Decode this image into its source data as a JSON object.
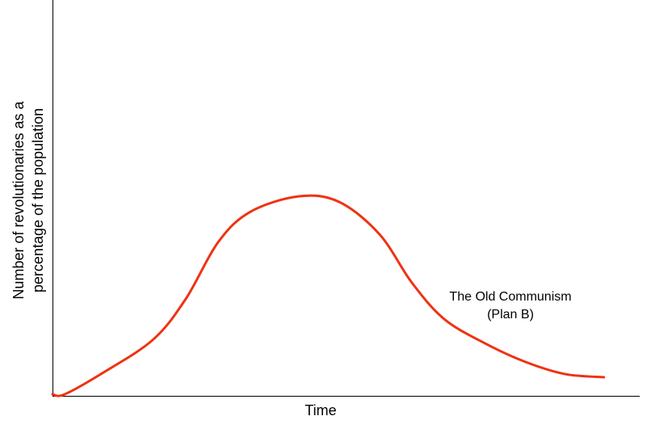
{
  "chart_data": {
    "type": "line",
    "x_label": "Time",
    "y_label": [
      "Number of revolutionaries as a",
      "percentage of the population"
    ],
    "annotations": [
      "The Old Communism",
      "(Plan B)"
    ],
    "annotation_color": "#ee3311",
    "xlim": [
      0,
      100
    ],
    "ylim": [
      0,
      100
    ],
    "x": [
      0,
      2.1,
      8.9,
      17.2,
      22.7,
      28.2,
      33.7,
      42.0,
      48.8,
      55.7,
      61.2,
      66.7,
      73.6,
      80.5,
      87.3,
      93.9
    ],
    "series": [
      {
        "color": "#ee3311",
        "values": [
          0.4,
          0.4,
          6.1,
          14.3,
          24.5,
          38.8,
          46.5,
          50.4,
          49.0,
          40.8,
          28.6,
          19.4,
          13.3,
          8.6,
          5.5,
          4.7
        ]
      }
    ]
  }
}
